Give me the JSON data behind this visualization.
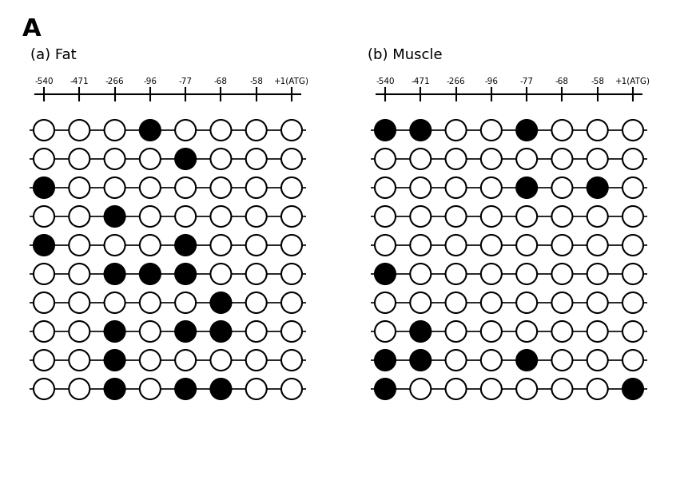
{
  "title_label": "A",
  "panel_a_label": "(a) Fat",
  "panel_b_label": "(b) Muscle",
  "axis_labels": [
    "-540",
    "-471",
    "-266",
    "-96",
    "-77",
    "-68",
    "-58",
    "+1(ATG)"
  ],
  "n_sites": 8,
  "n_rows": 10,
  "fat_filled": [
    [
      4
    ],
    [
      5
    ],
    [
      1
    ],
    [
      3
    ],
    [
      1,
      5
    ],
    [
      3,
      4,
      5
    ],
    [
      6
    ],
    [
      3,
      5,
      6
    ],
    [
      3
    ],
    [
      3,
      5,
      6
    ]
  ],
  "muscle_filled": [
    [
      1,
      2,
      5
    ],
    [],
    [
      5,
      7
    ],
    [],
    [],
    [
      1
    ],
    [],
    [
      2
    ],
    [
      1,
      2,
      5
    ],
    [
      1,
      8
    ]
  ],
  "bg_color": "#ffffff",
  "line_color": "#000000",
  "fill_color": "#000000",
  "open_fill": "#ffffff",
  "fig_width": 8.76,
  "fig_height": 6.06,
  "dpi": 100
}
